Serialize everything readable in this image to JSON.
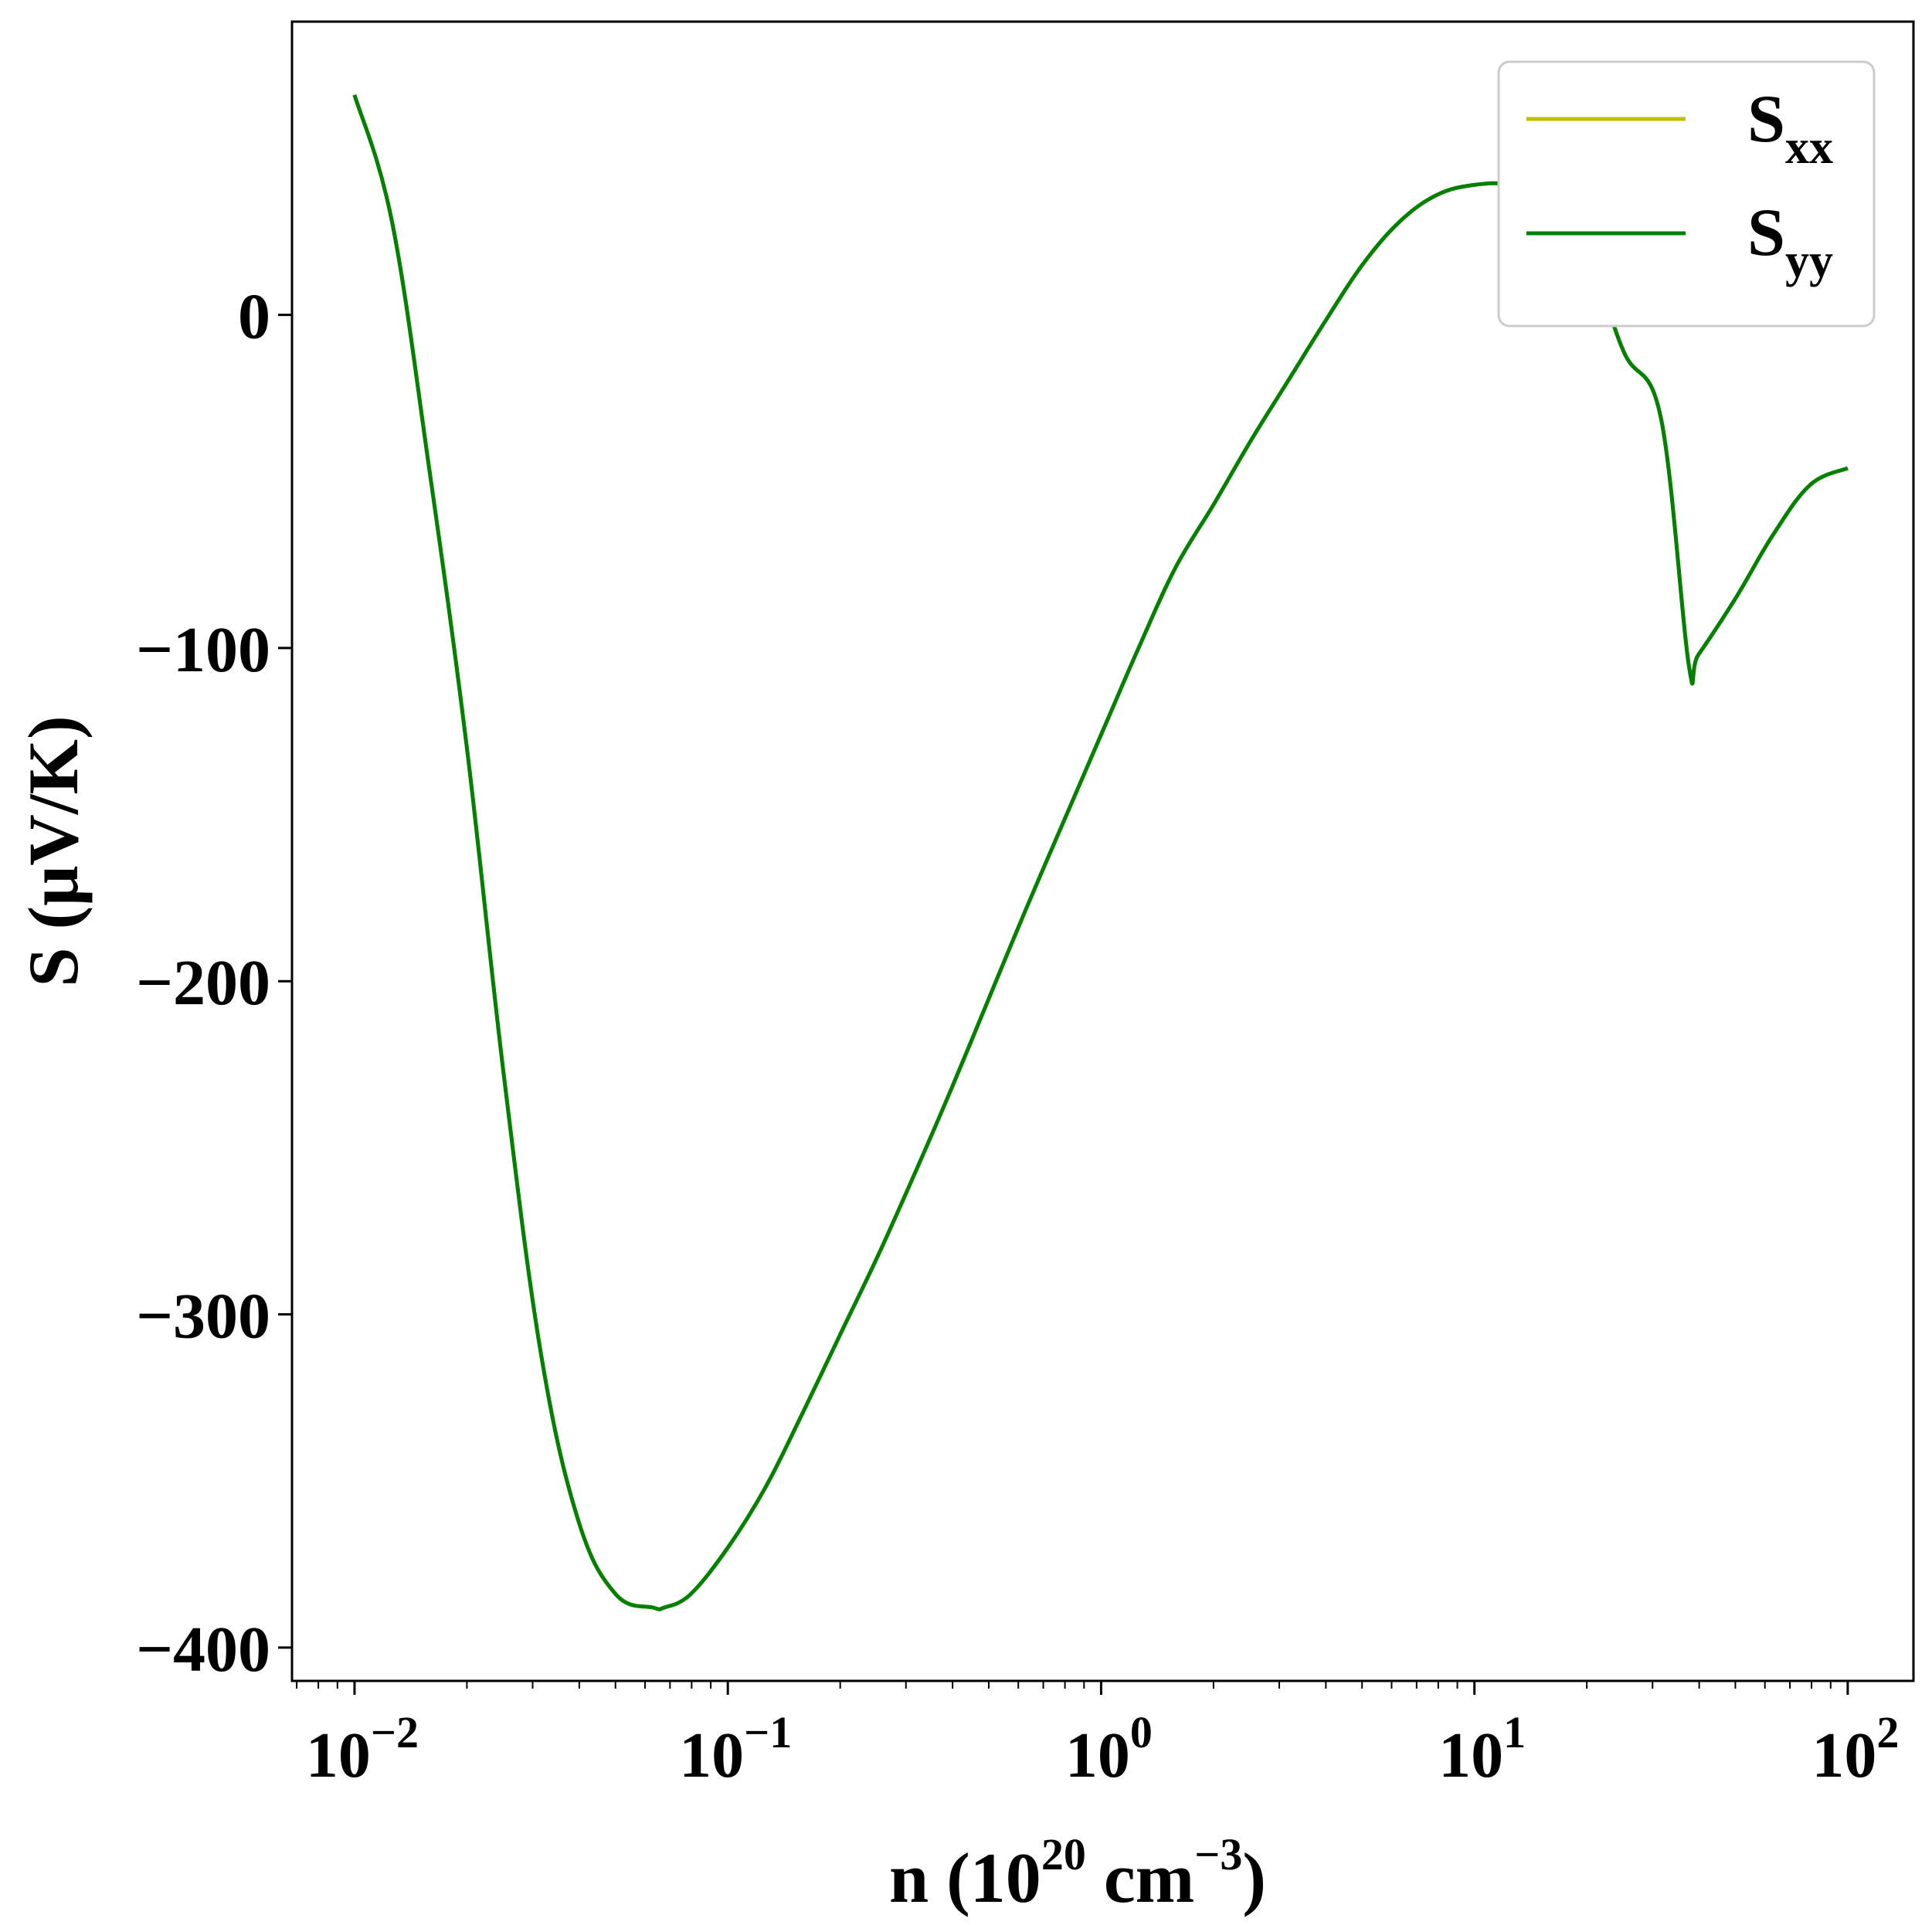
{
  "chart_data": {
    "type": "line",
    "x_scale": "log",
    "xlim": [
      0.0068,
      150
    ],
    "ylim": [
      -410,
      88
    ],
    "xlabel": {
      "base": "n (10",
      "sup1": "20",
      "mid": " cm",
      "sup2": "−3",
      "end": ")"
    },
    "ylabel": "S (μV/K)",
    "x_ticks": [
      {
        "value": 0.01,
        "base": "10",
        "exp": "−2"
      },
      {
        "value": 0.1,
        "base": "10",
        "exp": "−1"
      },
      {
        "value": 1,
        "base": "10",
        "exp": "0"
      },
      {
        "value": 10,
        "base": "10",
        "exp": "1"
      },
      {
        "value": 100,
        "base": "10",
        "exp": "2"
      }
    ],
    "y_ticks": [
      {
        "value": 0,
        "label": "0"
      },
      {
        "value": -100,
        "label": "−100"
      },
      {
        "value": -200,
        "label": "−200"
      },
      {
        "value": -300,
        "label": "−300"
      },
      {
        "value": -400,
        "label": "−400"
      }
    ],
    "legend_position": "top-right",
    "grid": false,
    "series": [
      {
        "name": "S_xx",
        "label_base": "S",
        "label_sub": "xx",
        "color": "#bfbf00",
        "x": [
          0.01,
          0.0126,
          0.0158,
          0.02,
          0.0251,
          0.0316,
          0.0398,
          0.0501,
          0.0631,
          0.0675,
          0.0794,
          0.1,
          0.126,
          0.158,
          0.2,
          0.251,
          0.316,
          0.398,
          0.501,
          0.631,
          0.794,
          1.0,
          1.26,
          1.58,
          2.0,
          2.51,
          3.16,
          3.98,
          5.01,
          6.31,
          7.94,
          10.0,
          12.6,
          15.8,
          20.0,
          25.1,
          31.6,
          37.5,
          39.8,
          50.1,
          63.1,
          79.4,
          100
        ],
        "y": [
          66,
          28,
          -45,
          -130,
          -228,
          -312,
          -362,
          -384,
          -388,
          -388,
          -384,
          -370,
          -352,
          -330,
          -306,
          -283,
          -258,
          -232,
          -205,
          -178,
          -152,
          -126,
          -100,
          -76,
          -57,
          -38,
          -20,
          -2,
          15,
          28,
          36,
          39,
          39,
          35,
          20,
          -11,
          -31,
          -105,
          -102,
          -85,
          -66,
          -51,
          -46
        ]
      },
      {
        "name": "S_yy",
        "label_base": "S",
        "label_sub": "yy",
        "color": "#008000",
        "x": [
          0.01,
          0.0126,
          0.0158,
          0.02,
          0.0251,
          0.0316,
          0.0398,
          0.0501,
          0.0631,
          0.0675,
          0.0794,
          0.1,
          0.126,
          0.158,
          0.2,
          0.251,
          0.316,
          0.398,
          0.501,
          0.631,
          0.794,
          1.0,
          1.26,
          1.58,
          2.0,
          2.51,
          3.16,
          3.98,
          5.01,
          6.31,
          7.94,
          10.0,
          12.6,
          15.8,
          20.0,
          25.1,
          31.6,
          37.5,
          39.8,
          50.1,
          63.1,
          79.4,
          100
        ],
        "y": [
          66,
          28,
          -45,
          -130,
          -228,
          -312,
          -362,
          -384,
          -388,
          -388,
          -384,
          -370,
          -352,
          -330,
          -306,
          -283,
          -258,
          -232,
          -205,
          -178,
          -152,
          -126,
          -100,
          -76,
          -57,
          -38,
          -20,
          -2,
          15,
          28,
          36,
          39,
          39,
          35,
          20,
          -11,
          -31,
          -105,
          -102,
          -85,
          -66,
          -51,
          -46
        ]
      }
    ]
  }
}
